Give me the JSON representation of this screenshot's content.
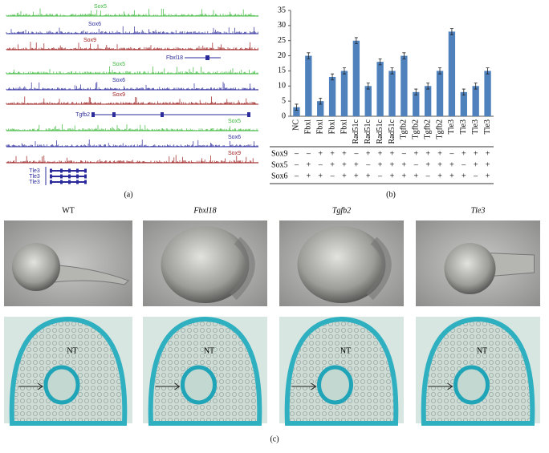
{
  "panel_labels": [
    "(a)",
    "(b)",
    "(c)"
  ],
  "tracks": {
    "groups": [
      {
        "labels": [
          "Sox5",
          "Sox6",
          "Sox9"
        ],
        "genes": [
          "Fbxl18"
        ]
      },
      {
        "labels": [
          "Sox5",
          "Sox6",
          "Sox9"
        ],
        "genes": [
          "Tgfb2"
        ]
      },
      {
        "labels": [
          "Sox5",
          "Sox6",
          "Sox9"
        ],
        "genes": [
          "Tle3",
          "Tle3",
          "Tle3"
        ]
      }
    ],
    "colors": [
      "#3cb83c",
      "#2b2b9b",
      "#9b1b1b"
    ]
  },
  "chart_data": {
    "type": "bar",
    "categories": [
      "NC",
      "Fbxl",
      "Fbxl",
      "Fbxl",
      "Fbxl",
      "Rad51c",
      "Rad51c",
      "Rad51c",
      "Rad51c",
      "Tgfb2",
      "Tgfb2",
      "Tgfb2",
      "Tgfb2",
      "Tle3",
      "Tle3",
      "Tle3",
      "Tle3"
    ],
    "values": [
      3,
      20,
      5,
      13,
      15,
      25,
      10,
      18,
      15,
      20,
      8,
      10,
      15,
      28,
      8,
      10,
      15
    ],
    "errors": [
      1,
      1,
      1,
      1,
      1,
      1,
      1,
      1,
      1,
      1,
      1,
      1,
      1,
      1,
      1,
      1,
      1
    ],
    "color": "#4f81bd",
    "ylim": [
      0,
      35
    ],
    "yticks": [
      0,
      5,
      10,
      15,
      20,
      25,
      30,
      35
    ],
    "conditions": [
      {
        "name": "Sox9",
        "marks": [
          "–",
          "–",
          "+",
          "+",
          "+",
          "–",
          "+",
          "+",
          "+",
          "–",
          "+",
          "+",
          "+",
          "–",
          "+",
          "+",
          "+"
        ]
      },
      {
        "name": "Sox5",
        "marks": [
          "–",
          "+",
          "–",
          "+",
          "+",
          "+",
          "–",
          "+",
          "+",
          "+",
          "–",
          "+",
          "+",
          "+",
          "–",
          "+",
          "+"
        ]
      },
      {
        "name": "Sox6",
        "marks": [
          "–",
          "+",
          "+",
          "–",
          "+",
          "+",
          "+",
          "–",
          "+",
          "+",
          "+",
          "–",
          "+",
          "+",
          "+",
          "–",
          "+"
        ]
      }
    ]
  },
  "images": {
    "columns": [
      "WT",
      "Fbxl18",
      "Tgfb2",
      "Tle3"
    ],
    "nt_labels": [
      "NT",
      "NT",
      "NT",
      "NT"
    ]
  }
}
